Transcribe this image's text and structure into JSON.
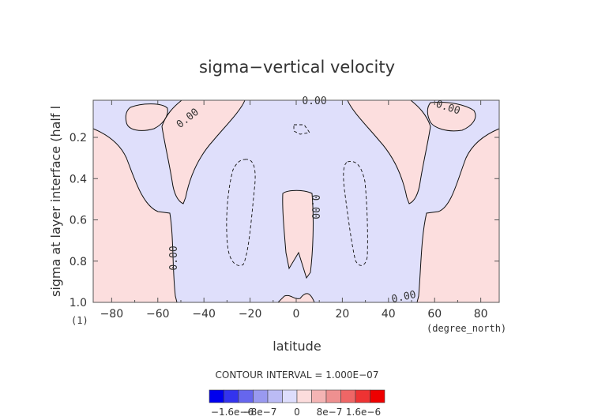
{
  "chart_data": {
    "type": "heatmap",
    "title": "sigma−vertical velocity",
    "xlabel": "latitude",
    "xunits": "(degree_north)",
    "ylabel": "sigma at layer interface (half l",
    "yunits": "(1)",
    "x_ticks": [
      -80,
      -60,
      -40,
      -20,
      0,
      20,
      40,
      60,
      80
    ],
    "x_tick_labels": [
      "−80",
      "−60",
      "−40",
      "−20",
      "0",
      "20",
      "40",
      "60",
      "80"
    ],
    "y_ticks": [
      0.2,
      0.4,
      0.6,
      0.8,
      1.0
    ],
    "y_tick_labels": [
      "0.2",
      "0.4",
      "0.6",
      "0.8",
      "1.0"
    ],
    "xlim": [
      -88,
      88
    ],
    "ylim": [
      0.02,
      1.0
    ],
    "y_inverted": true,
    "contour_labels": [
      "0.00",
      "0.00",
      "0.00",
      "0.00",
      "0.00",
      "0.00"
    ],
    "contour_interval_text": "CONTOUR INTERVAL = 1.000E−07",
    "colorbar": {
      "colors": [
        "#0000ee",
        "#3333ee",
        "#6666ee",
        "#9999f0",
        "#bbbbf5",
        "#ddddfc",
        "#fcdcdc",
        "#f4b4b4",
        "#ee9090",
        "#ee6666",
        "#ee3333",
        "#ee0000"
      ],
      "labels": [
        "−1.6e−6",
        "−8e−7",
        "0",
        "8e−7",
        "1.6e−6"
      ]
    },
    "region_colors": {
      "negative": "#dfdffb",
      "positive": "#fcdede"
    }
  }
}
